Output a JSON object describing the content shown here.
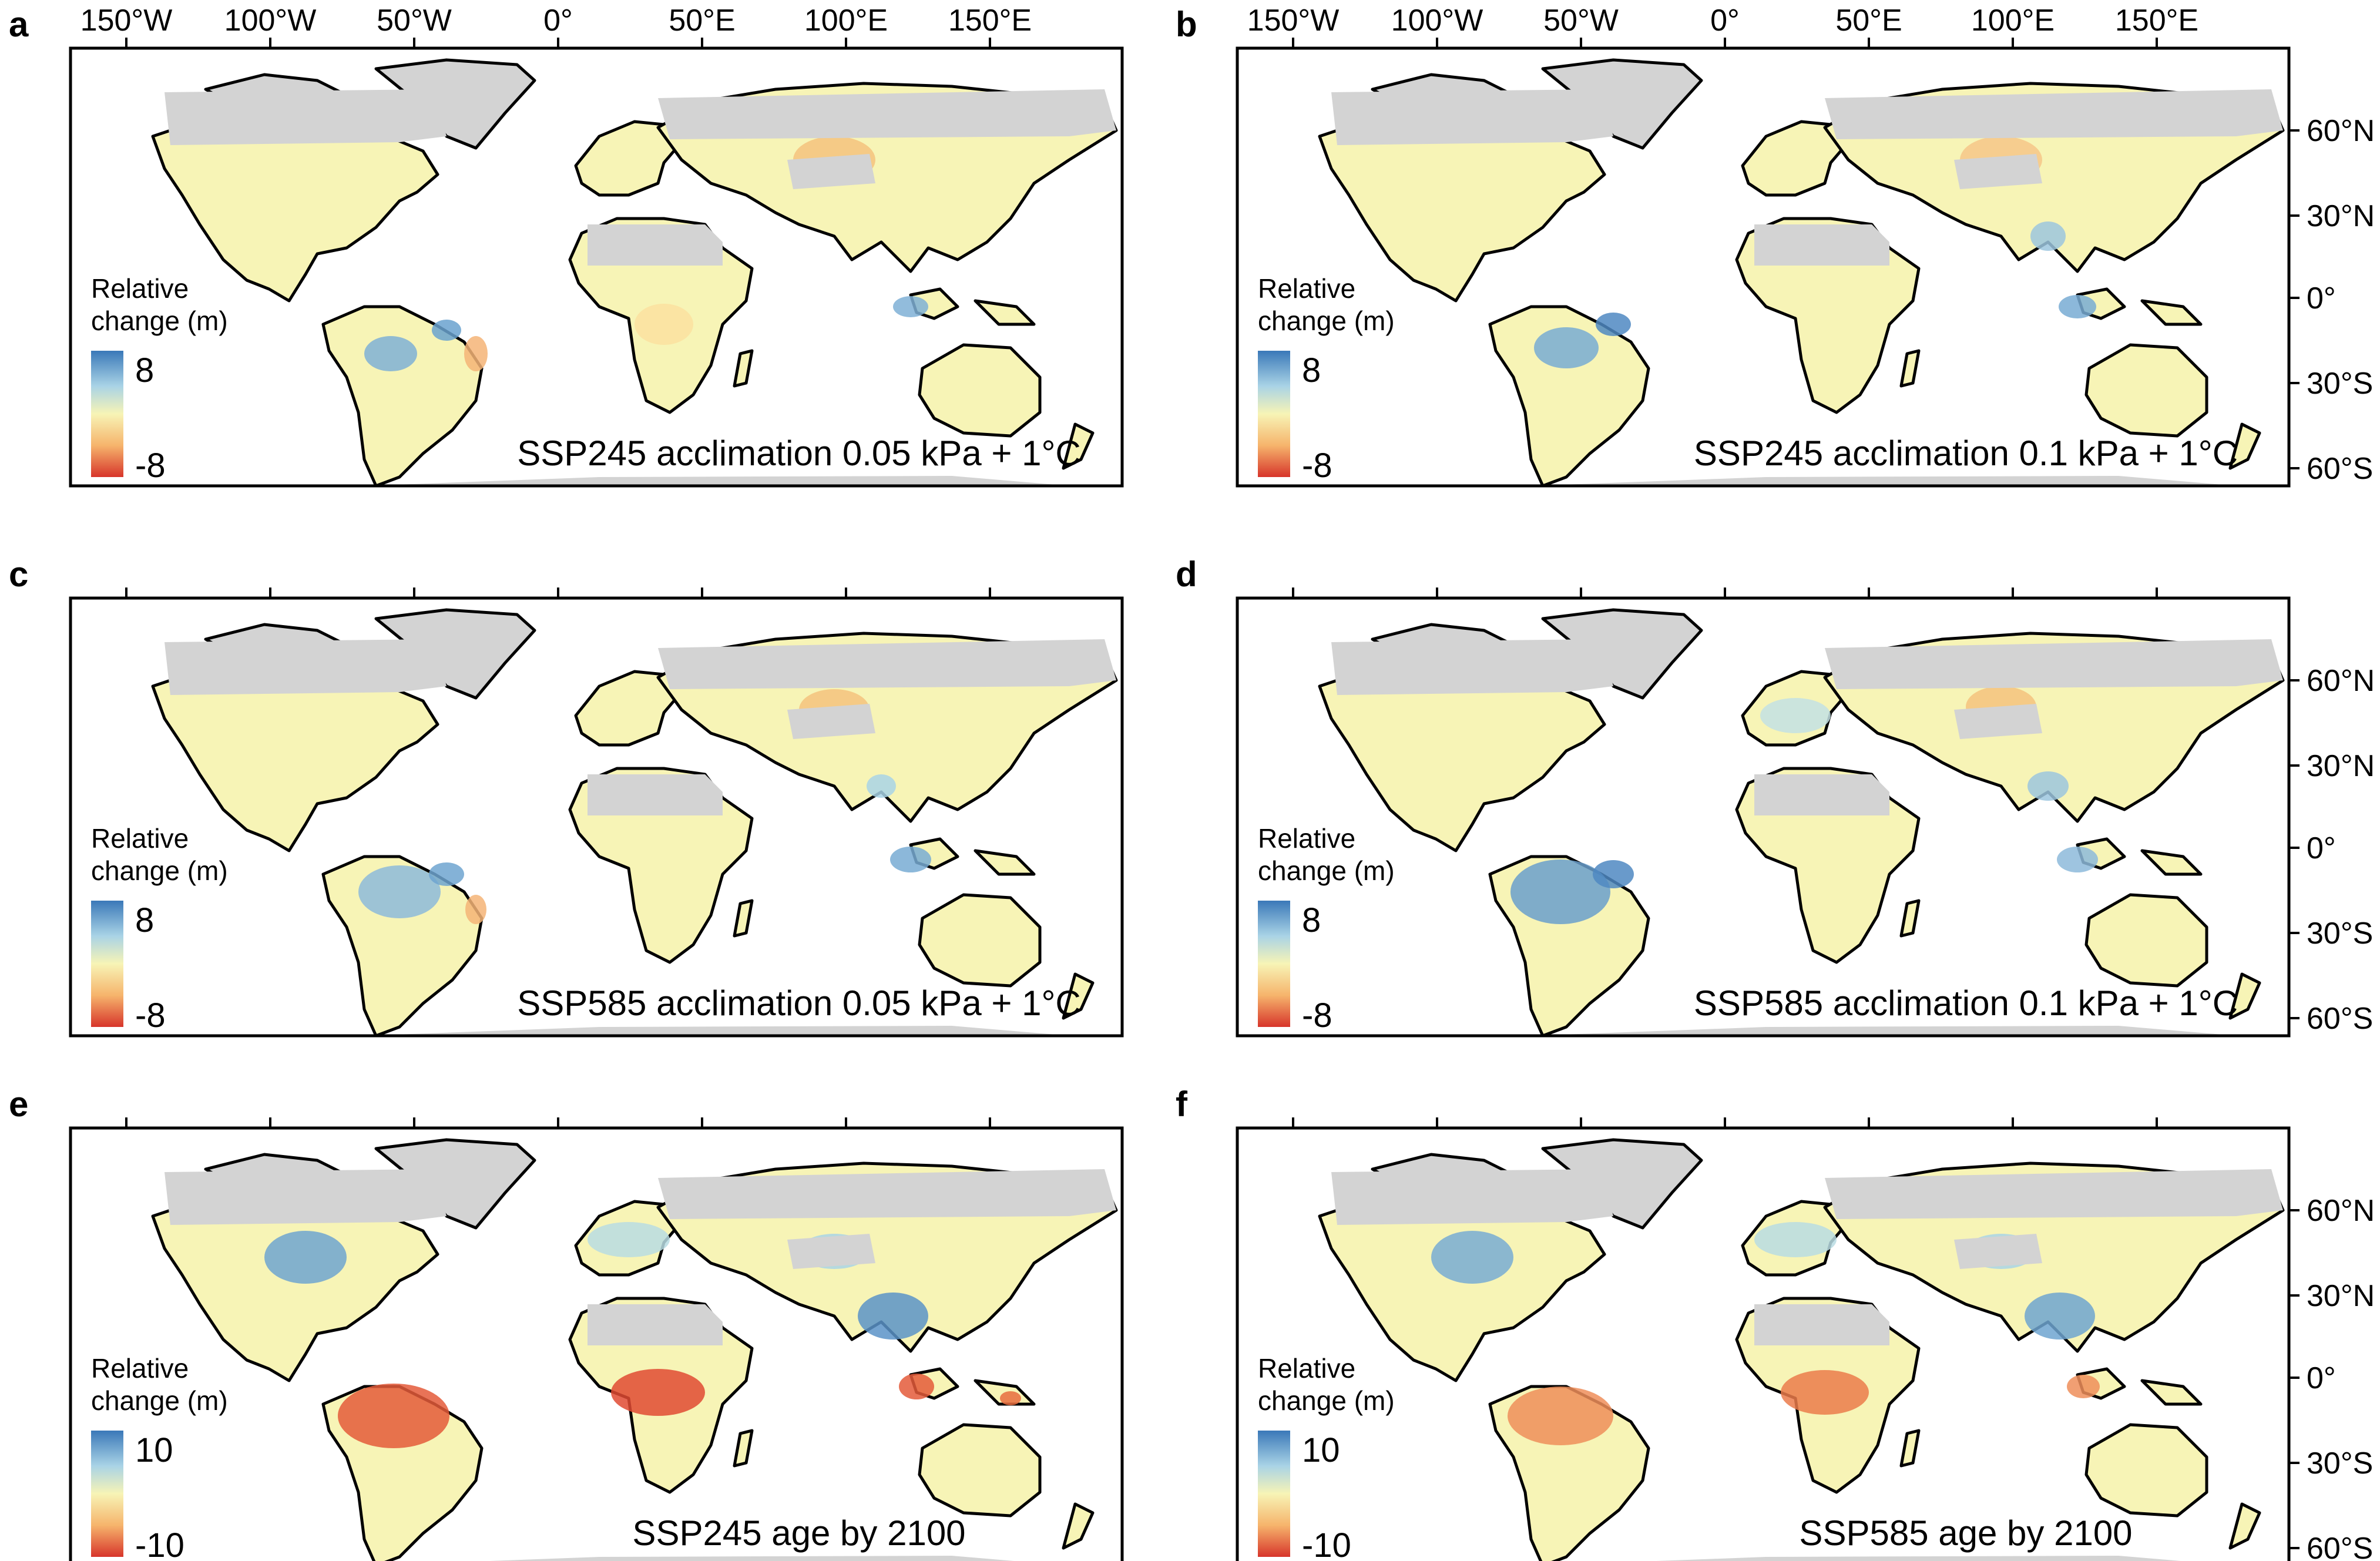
{
  "figure": {
    "longitude_ticks": [
      "150°W",
      "100°W",
      "50°W",
      "0°",
      "50°E",
      "100°E",
      "150°E"
    ],
    "latitude_ticks": [
      "60°N",
      "30°N",
      "0°",
      "30°S",
      "60°S"
    ],
    "colors": {
      "positive": "#3a78b8",
      "mid": "#f7f4b6",
      "negative": "#d7352b",
      "no_data": "#d3d3d3"
    },
    "panels": [
      {
        "id": "a",
        "letter": "a",
        "caption": "SSP245 acclimation 0.05 kPa + 1°C",
        "legend_title_1": "Relative",
        "legend_title_2": "change (m)",
        "legend_max": "8",
        "legend_min": "-8",
        "pattern": "mild-a"
      },
      {
        "id": "b",
        "letter": "b",
        "caption": "SSP245 acclimation 0.1 kPa + 1°C",
        "legend_title_1": "Relative",
        "legend_title_2": "change (m)",
        "legend_max": "8",
        "legend_min": "-8",
        "pattern": "mild-b"
      },
      {
        "id": "c",
        "letter": "c",
        "caption": "SSP585 acclimation 0.05 kPa + 1°C",
        "legend_title_1": "Relative",
        "legend_title_2": "change (m)",
        "legend_max": "8",
        "legend_min": "-8",
        "pattern": "mild-c"
      },
      {
        "id": "d",
        "letter": "d",
        "caption": "SSP585 acclimation 0.1 kPa + 1°C",
        "legend_title_1": "Relative",
        "legend_title_2": "change (m)",
        "legend_max": "8",
        "legend_min": "-8",
        "pattern": "mild-d"
      },
      {
        "id": "e",
        "letter": "e",
        "caption": "SSP245 age by 2100",
        "legend_title_1": "Relative",
        "legend_title_2": "change (m)",
        "legend_max": "10",
        "legend_min": "-10",
        "pattern": "age-e"
      },
      {
        "id": "f",
        "letter": "f",
        "caption": "SSP585 age by 2100",
        "legend_title_1": "Relative",
        "legend_title_2": "change (m)",
        "legend_max": "10",
        "legend_min": "-10",
        "pattern": "age-f"
      }
    ]
  }
}
